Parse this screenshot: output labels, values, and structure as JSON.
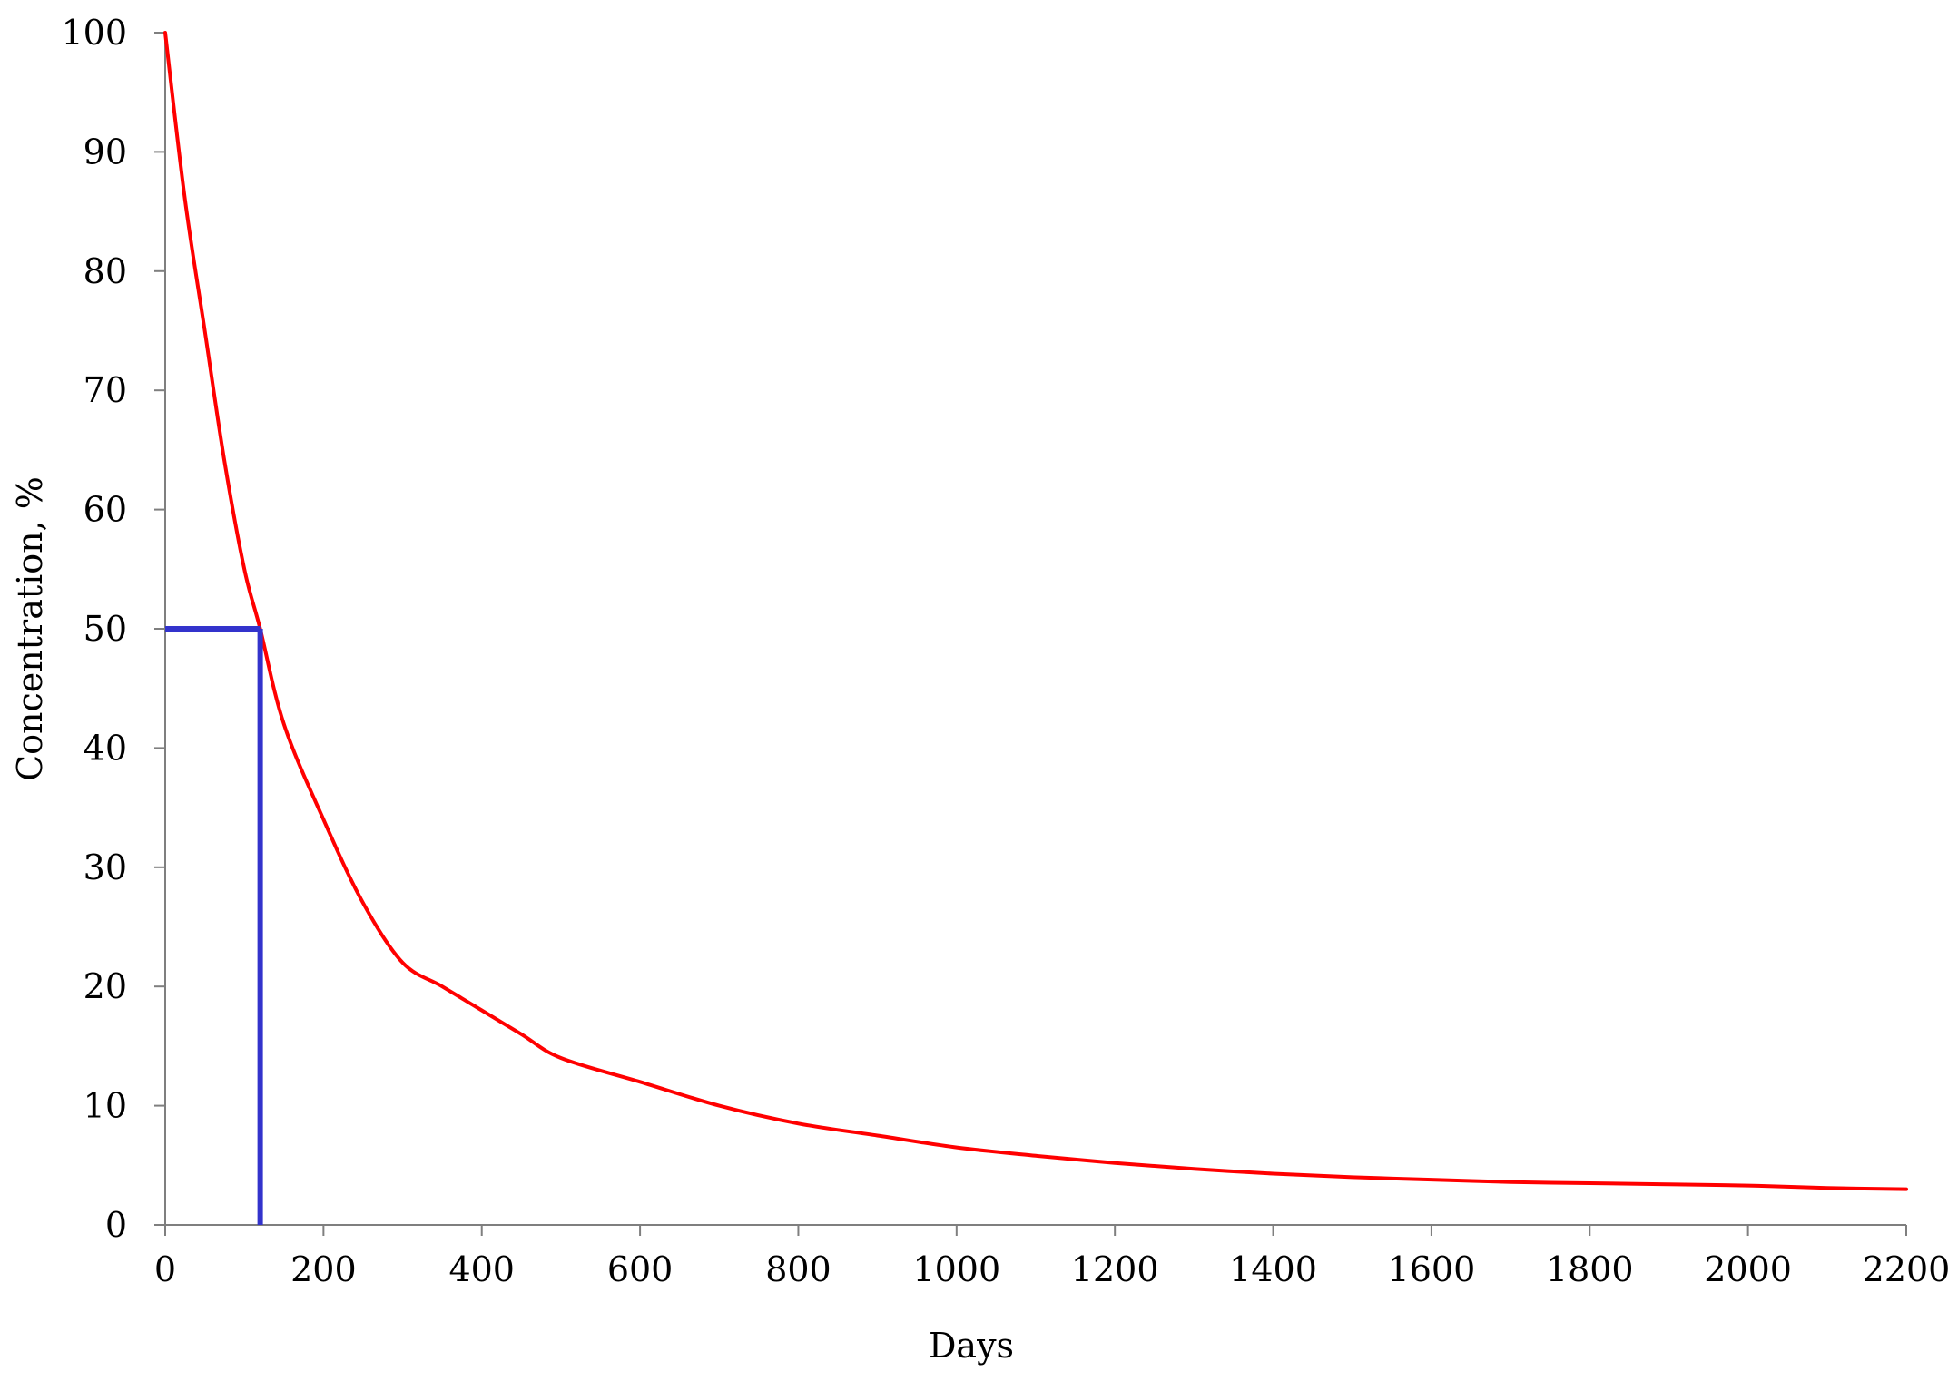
{
  "chart_data": {
    "type": "line",
    "title": "",
    "xlabel": "Days",
    "ylabel": "Concentration,  %",
    "xlim": [
      0,
      2200
    ],
    "ylim": [
      0,
      100
    ],
    "x_ticks": [
      0,
      200,
      400,
      600,
      800,
      1000,
      1200,
      1400,
      1600,
      1800,
      2000,
      2200
    ],
    "y_ticks": [
      0,
      10,
      20,
      30,
      40,
      50,
      60,
      70,
      80,
      90,
      100
    ],
    "x_tick_labels": [
      "0",
      "200",
      "400",
      "600",
      "800",
      "1000",
      "1200",
      "1400",
      "1600",
      "1800",
      "2000",
      "2200"
    ],
    "y_tick_labels": [
      "0",
      "10",
      "20",
      "30",
      "40",
      "50",
      "60",
      "70",
      "80",
      "90",
      "100"
    ],
    "grid": false,
    "legend": "none",
    "series": [
      {
        "color": "#ff0000",
        "x": [
          0,
          25,
          50,
          75,
          100,
          120,
          150,
          200,
          250,
          300,
          350,
          400,
          450,
          500,
          600,
          700,
          800,
          900,
          1000,
          1100,
          1200,
          1300,
          1400,
          1500,
          1600,
          1700,
          1800,
          1900,
          2000,
          2100,
          2200
        ],
        "y": [
          100,
          86,
          75,
          64,
          55,
          50,
          42,
          34,
          27,
          22,
          20,
          18,
          16,
          14,
          12,
          10,
          8.5,
          7.5,
          6.5,
          5.8,
          5.2,
          4.7,
          4.3,
          4.0,
          3.8,
          3.6,
          3.5,
          3.4,
          3.3,
          3.1,
          3.0
        ]
      }
    ],
    "annotations": [
      {
        "type": "half-life-guide",
        "color": "#3333cc",
        "x": 120,
        "y": 50
      }
    ]
  }
}
